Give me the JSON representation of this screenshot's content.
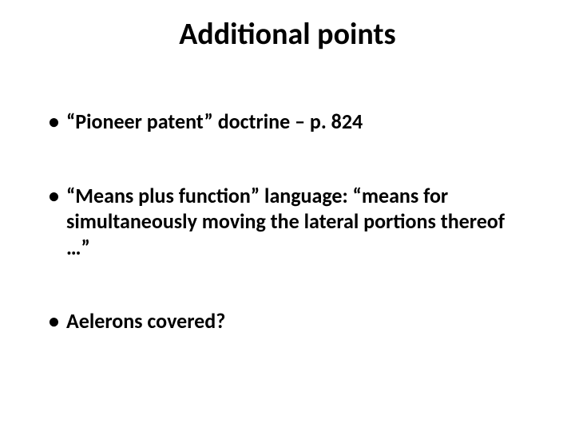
{
  "slide": {
    "title": "Additional points",
    "title_fontsize": 38,
    "title_color": "#000000",
    "bullets": [
      {
        "text": "“Pioneer patent” doctrine – p. 824",
        "fontsize": 26
      },
      {
        "text": "“Means plus function” language:  “means for simultaneously moving the lateral portions thereof …”",
        "fontsize": 26
      },
      {
        "text": "Aelerons covered?",
        "fontsize": 26
      }
    ],
    "background_color": "#ffffff",
    "text_color": "#000000",
    "font_family": "Calibri"
  }
}
